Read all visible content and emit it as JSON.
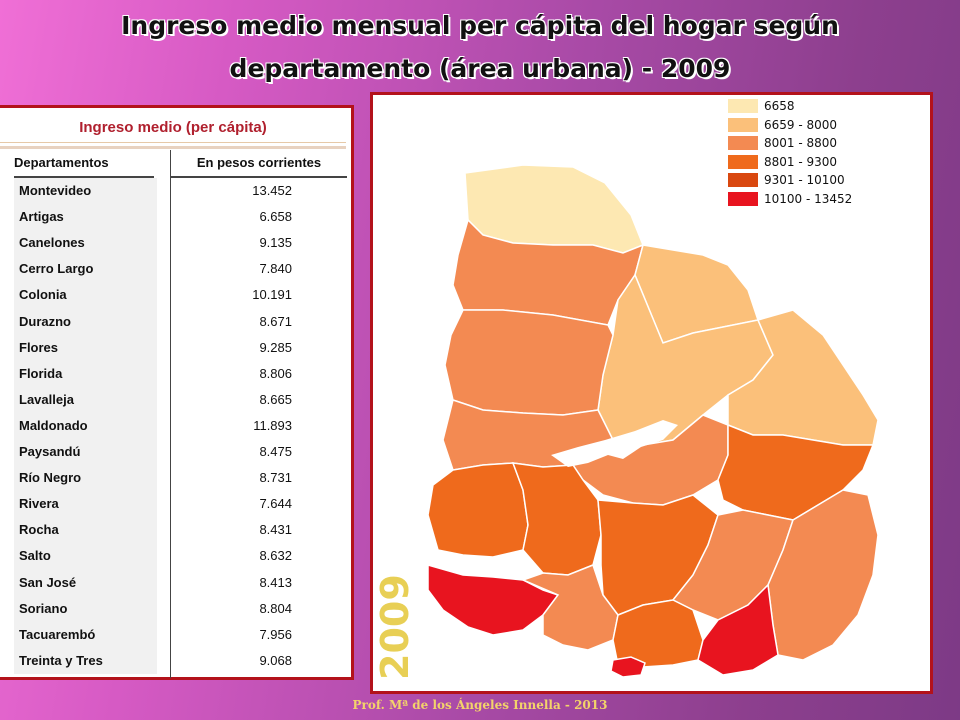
{
  "title": {
    "line1": "Ingreso medio mensual per cápita del hogar según",
    "line2": "departamento (área urbana) - 2009"
  },
  "table": {
    "heading": "Ingreso medio (per cápita)",
    "col1": "Departamentos",
    "col2": "En pesos corrientes",
    "rows": [
      {
        "name": "Montevideo",
        "value": "13.452"
      },
      {
        "name": "Artigas",
        "value": "6.658"
      },
      {
        "name": "Canelones",
        "value": "9.135"
      },
      {
        "name": "Cerro Largo",
        "value": "7.840"
      },
      {
        "name": "Colonia",
        "value": "10.191"
      },
      {
        "name": "Durazno",
        "value": "8.671"
      },
      {
        "name": "Flores",
        "value": "9.285"
      },
      {
        "name": "Florida",
        "value": "8.806"
      },
      {
        "name": "Lavalleja",
        "value": "8.665"
      },
      {
        "name": "Maldonado",
        "value": "11.893"
      },
      {
        "name": "Paysandú",
        "value": "8.475"
      },
      {
        "name": "Río Negro",
        "value": "8.731"
      },
      {
        "name": "Rivera",
        "value": "7.644"
      },
      {
        "name": "Rocha",
        "value": "8.431"
      },
      {
        "name": "Salto",
        "value": "8.632"
      },
      {
        "name": "San José",
        "value": "8.413"
      },
      {
        "name": "Soriano",
        "value": "8.804"
      },
      {
        "name": "Tacuarembó",
        "value": "7.956"
      },
      {
        "name": "Treinta y Tres",
        "value": "9.068"
      }
    ]
  },
  "map": {
    "year": "2009",
    "legend": [
      {
        "label": "6658",
        "color": "#fde8b2"
      },
      {
        "label": "6659 - 8000",
        "color": "#fbc07a"
      },
      {
        "label": "8001 - 8800",
        "color": "#f38a52"
      },
      {
        "label": "8801 - 9300",
        "color": "#ef6a1c"
      },
      {
        "label": "9301 - 10100",
        "color": "#d9480f"
      },
      {
        "label": "10100 - 13452",
        "color": "#e8141f"
      }
    ]
  },
  "footer": "Prof. Mª de los Ángeles Innella - 2013"
}
